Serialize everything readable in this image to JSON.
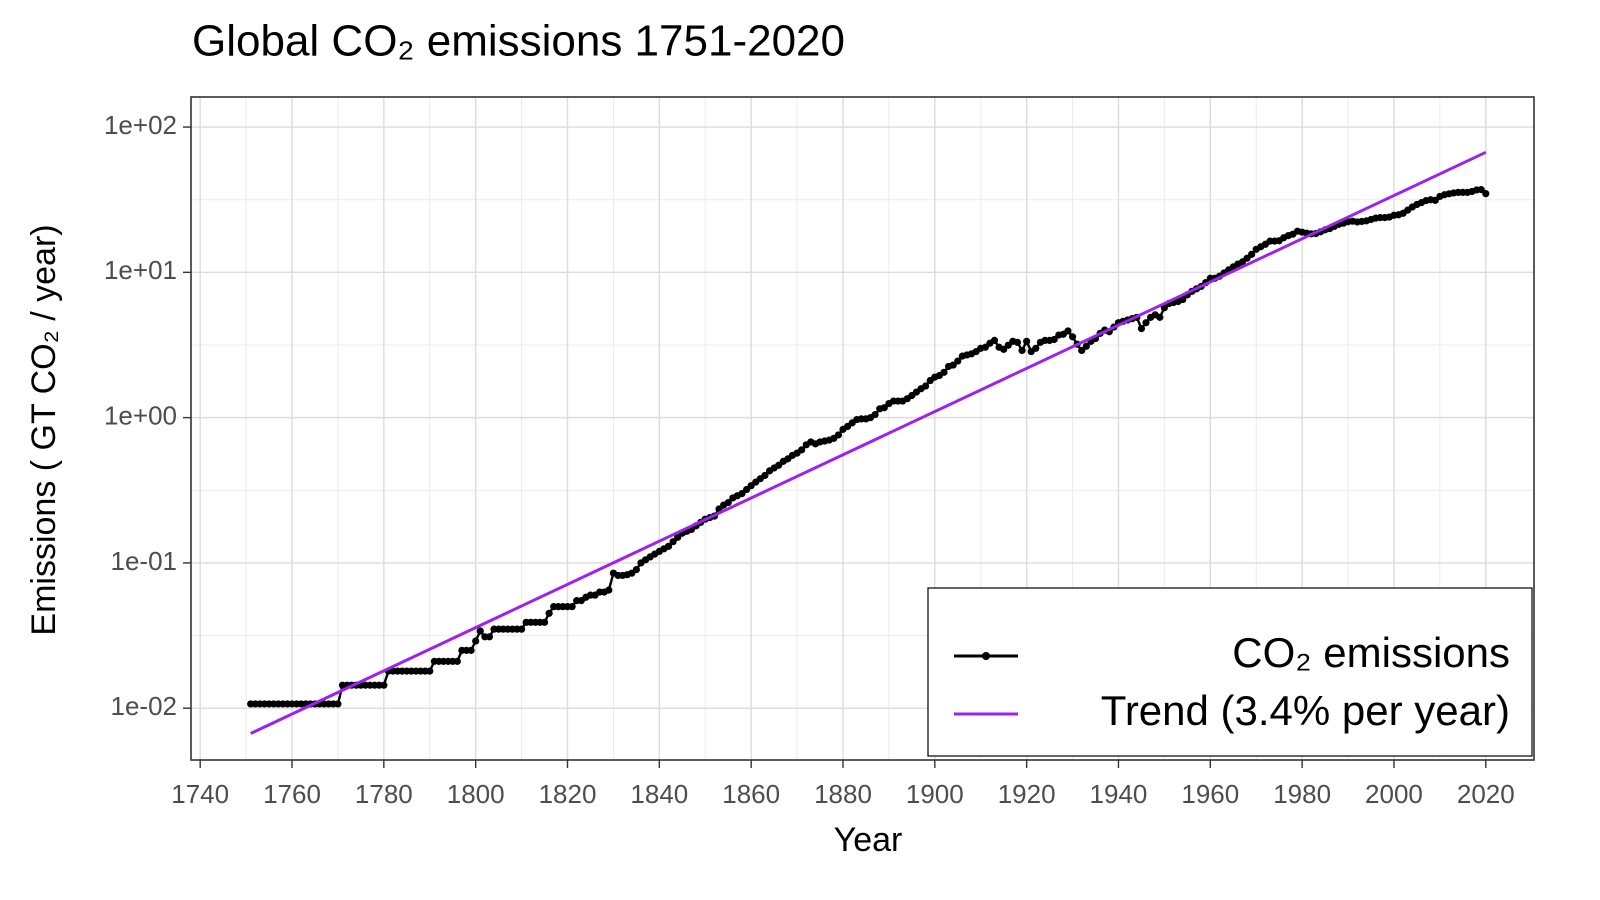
{
  "chart_data": {
    "type": "line",
    "title": "Global CO₂ emissions 1751-2020",
    "x_label": "Year",
    "y_label": "Emissions ( GT CO₂ / year)",
    "xlim": [
      1738,
      2030.5
    ],
    "xticks": [
      1740,
      1760,
      1780,
      1800,
      1820,
      1840,
      1860,
      1880,
      1900,
      1920,
      1940,
      1960,
      1980,
      2000,
      2020
    ],
    "ylim": [
      0.0044,
      161
    ],
    "yticks": [
      {
        "value": 0.01,
        "label": "1e-02"
      },
      {
        "value": 0.1,
        "label": "1e-01"
      },
      {
        "value": 1,
        "label": "1e+00"
      },
      {
        "value": 10,
        "label": "1e+01"
      },
      {
        "value": 100,
        "label": "1e+02"
      }
    ],
    "log_y": true,
    "grid": true,
    "legend": "bottom-right",
    "series": [
      {
        "name": "CO₂ emissions",
        "color": "#000000",
        "markers": true,
        "x": [
          1751,
          1752,
          1753,
          1754,
          1755,
          1756,
          1757,
          1758,
          1759,
          1760,
          1761,
          1762,
          1763,
          1764,
          1765,
          1766,
          1767,
          1768,
          1769,
          1770,
          1771,
          1772,
          1773,
          1774,
          1775,
          1776,
          1777,
          1778,
          1779,
          1780,
          1781,
          1782,
          1783,
          1784,
          1785,
          1786,
          1787,
          1788,
          1789,
          1790,
          1791,
          1792,
          1793,
          1794,
          1795,
          1796,
          1797,
          1798,
          1799,
          1800,
          1801,
          1802,
          1803,
          1804,
          1805,
          1806,
          1807,
          1808,
          1809,
          1810,
          1811,
          1812,
          1813,
          1814,
          1815,
          1816,
          1817,
          1818,
          1819,
          1820,
          1821,
          1822,
          1823,
          1824,
          1825,
          1826,
          1827,
          1828,
          1829,
          1830,
          1831,
          1832,
          1833,
          1834,
          1835,
          1836,
          1837,
          1838,
          1839,
          1840,
          1841,
          1842,
          1843,
          1844,
          1845,
          1846,
          1847,
          1848,
          1849,
          1850,
          1851,
          1852,
          1853,
          1854,
          1855,
          1856,
          1857,
          1858,
          1859,
          1860,
          1861,
          1862,
          1863,
          1864,
          1865,
          1866,
          1867,
          1868,
          1869,
          1870,
          1871,
          1872,
          1873,
          1874,
          1875,
          1876,
          1877,
          1878,
          1879,
          1880,
          1881,
          1882,
          1883,
          1884,
          1885,
          1886,
          1887,
          1888,
          1889,
          1890,
          1891,
          1892,
          1893,
          1894,
          1895,
          1896,
          1897,
          1898,
          1899,
          1900,
          1901,
          1902,
          1903,
          1904,
          1905,
          1906,
          1907,
          1908,
          1909,
          1910,
          1911,
          1912,
          1913,
          1914,
          1915,
          1916,
          1917,
          1918,
          1919,
          1920,
          1921,
          1922,
          1923,
          1924,
          1925,
          1926,
          1927,
          1928,
          1929,
          1930,
          1931,
          1932,
          1933,
          1934,
          1935,
          1936,
          1937,
          1938,
          1939,
          1940,
          1941,
          1942,
          1943,
          1944,
          1945,
          1946,
          1947,
          1948,
          1949,
          1950,
          1951,
          1952,
          1953,
          1954,
          1955,
          1956,
          1957,
          1958,
          1959,
          1960,
          1961,
          1962,
          1963,
          1964,
          1965,
          1966,
          1967,
          1968,
          1969,
          1970,
          1971,
          1972,
          1973,
          1974,
          1975,
          1976,
          1977,
          1978,
          1979,
          1980,
          1981,
          1982,
          1983,
          1984,
          1985,
          1986,
          1987,
          1988,
          1989,
          1990,
          1991,
          1992,
          1993,
          1994,
          1995,
          1996,
          1997,
          1998,
          1999,
          2000,
          2001,
          2002,
          2003,
          2004,
          2005,
          2006,
          2007,
          2008,
          2009,
          2010,
          2011,
          2012,
          2013,
          2014,
          2015,
          2016,
          2017,
          2018,
          2019,
          2020
        ],
        "values": [
          0.0107,
          0.0107,
          0.0107,
          0.0107,
          0.0107,
          0.0107,
          0.0107,
          0.0107,
          0.0107,
          0.0107,
          0.0107,
          0.0107,
          0.0107,
          0.0107,
          0.0107,
          0.0107,
          0.0107,
          0.0107,
          0.0107,
          0.0107,
          0.0144,
          0.0144,
          0.0144,
          0.0144,
          0.0144,
          0.0144,
          0.0144,
          0.0144,
          0.0144,
          0.0144,
          0.018,
          0.018,
          0.018,
          0.018,
          0.018,
          0.018,
          0.018,
          0.018,
          0.018,
          0.018,
          0.021,
          0.021,
          0.021,
          0.021,
          0.021,
          0.021,
          0.025,
          0.025,
          0.025,
          0.029,
          0.034,
          0.031,
          0.031,
          0.035,
          0.035,
          0.035,
          0.035,
          0.035,
          0.035,
          0.035,
          0.039,
          0.039,
          0.039,
          0.039,
          0.039,
          0.045,
          0.05,
          0.05,
          0.05,
          0.05,
          0.05,
          0.055,
          0.055,
          0.058,
          0.06,
          0.06,
          0.063,
          0.063,
          0.065,
          0.085,
          0.082,
          0.082,
          0.083,
          0.085,
          0.09,
          0.1,
          0.105,
          0.11,
          0.115,
          0.12,
          0.125,
          0.13,
          0.14,
          0.15,
          0.16,
          0.165,
          0.17,
          0.18,
          0.19,
          0.2,
          0.205,
          0.21,
          0.235,
          0.25,
          0.26,
          0.28,
          0.29,
          0.3,
          0.32,
          0.34,
          0.36,
          0.38,
          0.4,
          0.43,
          0.45,
          0.47,
          0.5,
          0.52,
          0.55,
          0.57,
          0.6,
          0.65,
          0.68,
          0.66,
          0.68,
          0.69,
          0.7,
          0.72,
          0.76,
          0.83,
          0.87,
          0.92,
          0.97,
          0.98,
          0.98,
          1.0,
          1.05,
          1.15,
          1.17,
          1.25,
          1.3,
          1.3,
          1.3,
          1.35,
          1.42,
          1.5,
          1.58,
          1.65,
          1.8,
          1.9,
          1.95,
          2.05,
          2.25,
          2.3,
          2.45,
          2.65,
          2.7,
          2.75,
          2.85,
          3.0,
          3.05,
          3.25,
          3.4,
          3.05,
          2.95,
          3.15,
          3.35,
          3.3,
          2.9,
          3.35,
          2.85,
          3.0,
          3.3,
          3.4,
          3.4,
          3.45,
          3.7,
          3.75,
          3.95,
          3.6,
          3.2,
          2.9,
          3.1,
          3.35,
          3.5,
          3.8,
          4.0,
          3.9,
          4.2,
          4.5,
          4.6,
          4.7,
          4.8,
          4.9,
          4.1,
          4.5,
          4.9,
          5.1,
          4.9,
          5.7,
          6.1,
          6.2,
          6.3,
          6.5,
          7.0,
          7.4,
          7.7,
          8.0,
          8.5,
          9.1,
          9.1,
          9.4,
          9.9,
          10.4,
          10.9,
          11.4,
          11.8,
          12.5,
          13.3,
          14.4,
          15.0,
          15.6,
          16.4,
          16.4,
          16.5,
          17.3,
          17.9,
          18.3,
          19.2,
          18.9,
          18.6,
          18.4,
          18.5,
          19.0,
          19.6,
          20.0,
          20.7,
          21.4,
          21.8,
          22.3,
          22.5,
          22.2,
          22.4,
          22.6,
          23.1,
          23.6,
          23.8,
          23.8,
          24.0,
          24.7,
          24.9,
          25.5,
          26.8,
          28.2,
          29.3,
          30.2,
          31.2,
          31.6,
          31.3,
          33.3,
          34.2,
          34.7,
          35.2,
          35.5,
          35.5,
          35.5,
          36.0,
          36.9,
          37.1,
          34.8
        ]
      },
      {
        "name": "Trend (3.4% per year)",
        "color": "#a020f0",
        "markers": false,
        "x": [
          1751,
          2020
        ],
        "values": [
          0.0067,
          67
        ]
      }
    ]
  }
}
